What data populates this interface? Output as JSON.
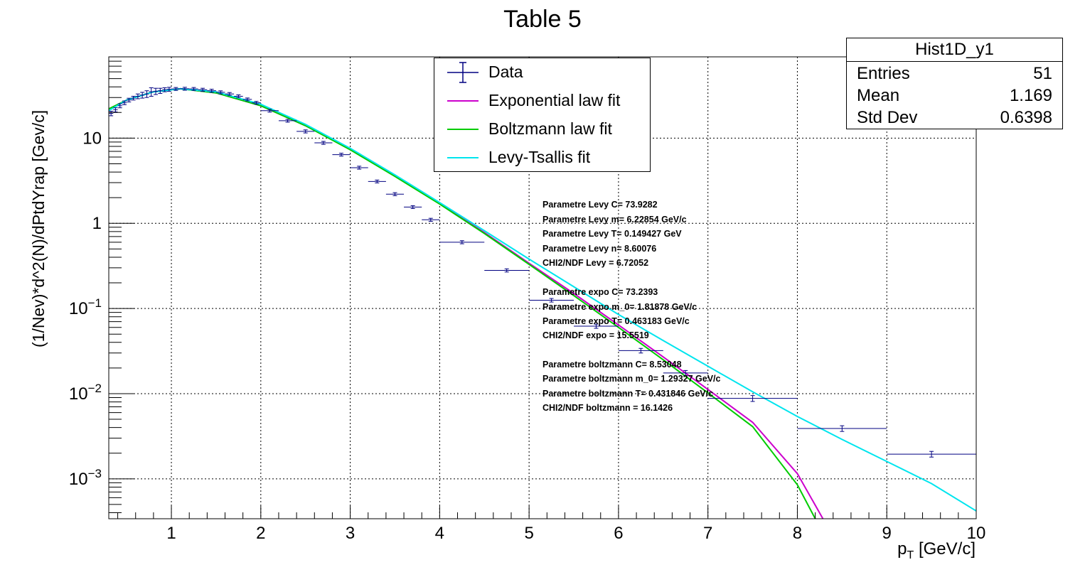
{
  "chart_data": {
    "type": "scatter",
    "title": "Table 5",
    "xlabel": "p_T [GeV/c]",
    "ylabel": "(1/Nev)*d^2(N)/dPtdYrap  [Gev/c]",
    "xlim": [
      0.3,
      10
    ],
    "ylim": [
      0.00034,
      90
    ],
    "ylog": true,
    "grid": true,
    "x_ticks": [
      "1",
      "2",
      "3",
      "4",
      "5",
      "6",
      "7",
      "8",
      "9",
      "10"
    ],
    "y_ticks": [
      "10^-3",
      "10^-2",
      "10^-1",
      "1",
      "10"
    ],
    "legend": {
      "position": "top-center",
      "entries": [
        {
          "label": "Data",
          "color": "#000080"
        },
        {
          "label": "Exponential law fit",
          "color": "#cc00cc"
        },
        {
          "label": "Boltzmann law fit",
          "color": "#00cc00"
        },
        {
          "label": "Levy-Tsallis fit",
          "color": "#00e5ee"
        }
      ]
    },
    "data_series": {
      "name": "Data",
      "points": [
        {
          "x": 0.325,
          "y": 19.5,
          "xerr": 0.025,
          "yerr": 1.2
        },
        {
          "x": 0.375,
          "y": 21.5,
          "xerr": 0.025,
          "yerr": 1.2
        },
        {
          "x": 0.425,
          "y": 24.0,
          "xerr": 0.025,
          "yerr": 1.3
        },
        {
          "x": 0.475,
          "y": 26.0,
          "xerr": 0.025,
          "yerr": 1.3
        },
        {
          "x": 0.525,
          "y": 28.0,
          "xerr": 0.025,
          "yerr": 1.4
        },
        {
          "x": 0.575,
          "y": 29.5,
          "xerr": 0.025,
          "yerr": 1.5
        },
        {
          "x": 0.625,
          "y": 31.0,
          "xerr": 0.025,
          "yerr": 2.0
        },
        {
          "x": 0.675,
          "y": 32.0,
          "xerr": 0.025,
          "yerr": 2.5
        },
        {
          "x": 0.725,
          "y": 33.0,
          "xerr": 0.025,
          "yerr": 3.0
        },
        {
          "x": 0.775,
          "y": 35.0,
          "xerr": 0.025,
          "yerr": 4.0
        },
        {
          "x": 0.825,
          "y": 35.5,
          "xerr": 0.025,
          "yerr": 3.0
        },
        {
          "x": 0.875,
          "y": 36.0,
          "xerr": 0.025,
          "yerr": 2.5
        },
        {
          "x": 0.925,
          "y": 37.0,
          "xerr": 0.025,
          "yerr": 2.0
        },
        {
          "x": 0.975,
          "y": 37.5,
          "xerr": 0.025,
          "yerr": 2.0
        },
        {
          "x": 1.05,
          "y": 37.8,
          "xerr": 0.05,
          "yerr": 1.5
        },
        {
          "x": 1.15,
          "y": 38.0,
          "xerr": 0.05,
          "yerr": 1.5
        },
        {
          "x": 1.25,
          "y": 37.8,
          "xerr": 0.05,
          "yerr": 1.5
        },
        {
          "x": 1.35,
          "y": 37.0,
          "xerr": 0.05,
          "yerr": 1.5
        },
        {
          "x": 1.45,
          "y": 36.0,
          "xerr": 0.05,
          "yerr": 1.5
        },
        {
          "x": 1.55,
          "y": 34.5,
          "xerr": 0.05,
          "yerr": 1.4
        },
        {
          "x": 1.65,
          "y": 33.0,
          "xerr": 0.05,
          "yerr": 1.3
        },
        {
          "x": 1.75,
          "y": 31.0,
          "xerr": 0.05,
          "yerr": 1.2
        },
        {
          "x": 1.85,
          "y": 28.5,
          "xerr": 0.05,
          "yerr": 1.1
        },
        {
          "x": 1.95,
          "y": 26.0,
          "xerr": 0.05,
          "yerr": 1.0
        },
        {
          "x": 2.1,
          "y": 21.0,
          "xerr": 0.1,
          "yerr": 0.8
        },
        {
          "x": 2.3,
          "y": 16.0,
          "xerr": 0.1,
          "yerr": 0.6
        },
        {
          "x": 2.5,
          "y": 12.0,
          "xerr": 0.1,
          "yerr": 0.5
        },
        {
          "x": 2.7,
          "y": 8.8,
          "xerr": 0.1,
          "yerr": 0.35
        },
        {
          "x": 2.9,
          "y": 6.4,
          "xerr": 0.1,
          "yerr": 0.25
        },
        {
          "x": 3.1,
          "y": 4.5,
          "xerr": 0.1,
          "yerr": 0.18
        },
        {
          "x": 3.3,
          "y": 3.1,
          "xerr": 0.1,
          "yerr": 0.12
        },
        {
          "x": 3.5,
          "y": 2.2,
          "xerr": 0.1,
          "yerr": 0.09
        },
        {
          "x": 3.7,
          "y": 1.55,
          "xerr": 0.1,
          "yerr": 0.06
        },
        {
          "x": 3.9,
          "y": 1.1,
          "xerr": 0.1,
          "yerr": 0.045
        },
        {
          "x": 4.25,
          "y": 0.6,
          "xerr": 0.25,
          "yerr": 0.025
        },
        {
          "x": 4.75,
          "y": 0.28,
          "xerr": 0.25,
          "yerr": 0.012
        },
        {
          "x": 5.25,
          "y": 0.125,
          "xerr": 0.25,
          "yerr": 0.006
        },
        {
          "x": 5.75,
          "y": 0.062,
          "xerr": 0.25,
          "yerr": 0.0035
        },
        {
          "x": 6.25,
          "y": 0.032,
          "xerr": 0.25,
          "yerr": 0.002
        },
        {
          "x": 6.75,
          "y": 0.0175,
          "xerr": 0.25,
          "yerr": 0.0012
        },
        {
          "x": 7.5,
          "y": 0.0088,
          "xerr": 0.5,
          "yerr": 0.0007
        },
        {
          "x": 8.5,
          "y": 0.0039,
          "xerr": 0.5,
          "yerr": 0.0003
        },
        {
          "x": 9.5,
          "y": 0.00195,
          "xerr": 0.5,
          "yerr": 0.00015
        }
      ]
    },
    "fit_curves": [
      {
        "name": "Exponential law fit",
        "color": "#cc00cc",
        "x": [
          0.3,
          0.5,
          0.8,
          1.1,
          1.5,
          2.0,
          2.5,
          3.0,
          3.5,
          4.0,
          4.5,
          5.0,
          5.5,
          6.0,
          6.5,
          7.0,
          7.5,
          8.0,
          8.3
        ],
        "y": [
          22,
          28,
          35,
          38,
          34,
          24,
          14,
          7.4,
          3.6,
          1.7,
          0.78,
          0.34,
          0.15,
          0.064,
          0.027,
          0.0112,
          0.0046,
          0.00115,
          0.00032
        ]
      },
      {
        "name": "Boltzmann law fit",
        "color": "#00cc00",
        "x": [
          0.3,
          0.5,
          0.8,
          1.1,
          1.5,
          2.0,
          2.5,
          3.0,
          3.5,
          4.0,
          4.5,
          5.0,
          5.5,
          6.0,
          6.5,
          7.0,
          7.5,
          8.0,
          8.2
        ],
        "y": [
          22,
          28,
          35,
          38,
          34,
          24,
          14,
          7.3,
          3.55,
          1.68,
          0.76,
          0.33,
          0.142,
          0.06,
          0.025,
          0.0102,
          0.0041,
          0.00085,
          0.00034
        ]
      },
      {
        "name": "Levy-Tsallis fit",
        "color": "#00e5ee",
        "x": [
          0.3,
          0.5,
          0.8,
          1.1,
          1.5,
          2.0,
          2.5,
          3.0,
          3.5,
          4.0,
          4.5,
          5.0,
          5.5,
          6.0,
          6.5,
          7.0,
          7.5,
          8.0,
          8.5,
          9.0,
          9.5,
          10.0
        ],
        "y": [
          21,
          28,
          35,
          38,
          35,
          25,
          14.5,
          7.6,
          3.7,
          1.75,
          0.82,
          0.38,
          0.18,
          0.085,
          0.042,
          0.021,
          0.0105,
          0.0054,
          0.0029,
          0.0016,
          0.00088,
          0.00042
        ]
      }
    ],
    "fit_parameters": [
      "Parametre Levy C= 73.9282",
      "Parametre Levy m= 6.22854 GeV/c",
      "Parametre Levy T= 0.149427 GeV",
      "Parametre Levy n= 8.60076",
      "CHI2/NDF Levy = 6.72052",
      "Parametre expo C= 73.2393",
      "Parametre expo m_0= 1.81878 GeV/c",
      "Parametre expo T= 0.463183 GeV/c",
      "CHI2/NDF expo = 15.5519",
      "Parametre boltzmann C= 8.53048",
      "Parametre boltzmann m_0= 1.29327 GeV/c",
      "Parametre boltzmann T= 0.431846 GeV/c",
      "CHI2/NDF boltzmann = 16.1426"
    ]
  },
  "stats_box": {
    "title": "Hist1D_y1",
    "rows": [
      {
        "key": "Entries",
        "value": "51"
      },
      {
        "key": "Mean",
        "value": "1.169"
      },
      {
        "key": "Std Dev",
        "value": "0.6398"
      }
    ]
  }
}
